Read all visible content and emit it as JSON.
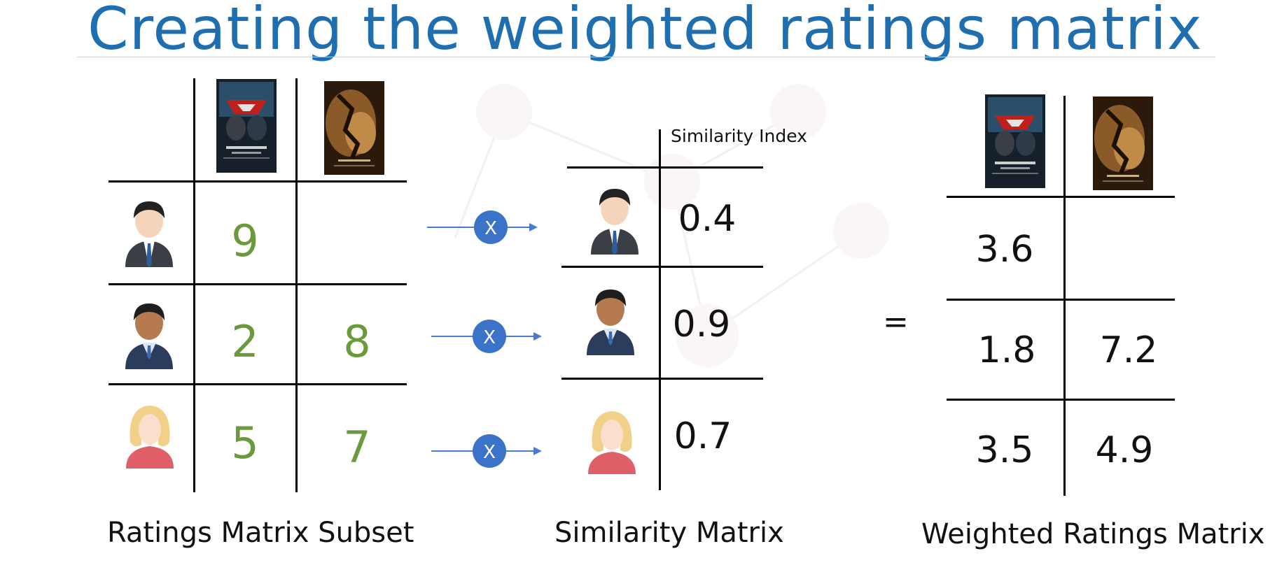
{
  "title": "Creating the weighted ratings matrix",
  "icons": {
    "poster_1": "batman-v-superman-poster-icon",
    "poster_2": "batman-begins-poster-icon",
    "user_1": "businessman-light-skin-icon",
    "user_2": "businessman-dark-skin-icon",
    "user_3": "woman-blonde-icon",
    "multiply": "multiply-x-icon"
  },
  "colors": {
    "title": "#1f6eb0",
    "ratings": "#6a9a3c",
    "operator": "#3b73c8"
  },
  "ratings_matrix": {
    "caption": "Ratings Matrix Subset",
    "rows": [
      {
        "m1": "9",
        "m2": ""
      },
      {
        "m1": "2",
        "m2": "8"
      },
      {
        "m1": "5",
        "m2": "7"
      }
    ]
  },
  "operator_label": "X",
  "similarity_matrix": {
    "caption": "Similarity Matrix",
    "header": "Similarity Index",
    "values": [
      "0.4",
      "0.9",
      "0.7"
    ]
  },
  "equals": "=",
  "weighted_matrix": {
    "caption": "Weighted Ratings Matrix",
    "rows": [
      {
        "m1": "3.6",
        "m2": ""
      },
      {
        "m1": "1.8",
        "m2": "7.2"
      },
      {
        "m1": "3.5",
        "m2": "4.9"
      }
    ]
  }
}
